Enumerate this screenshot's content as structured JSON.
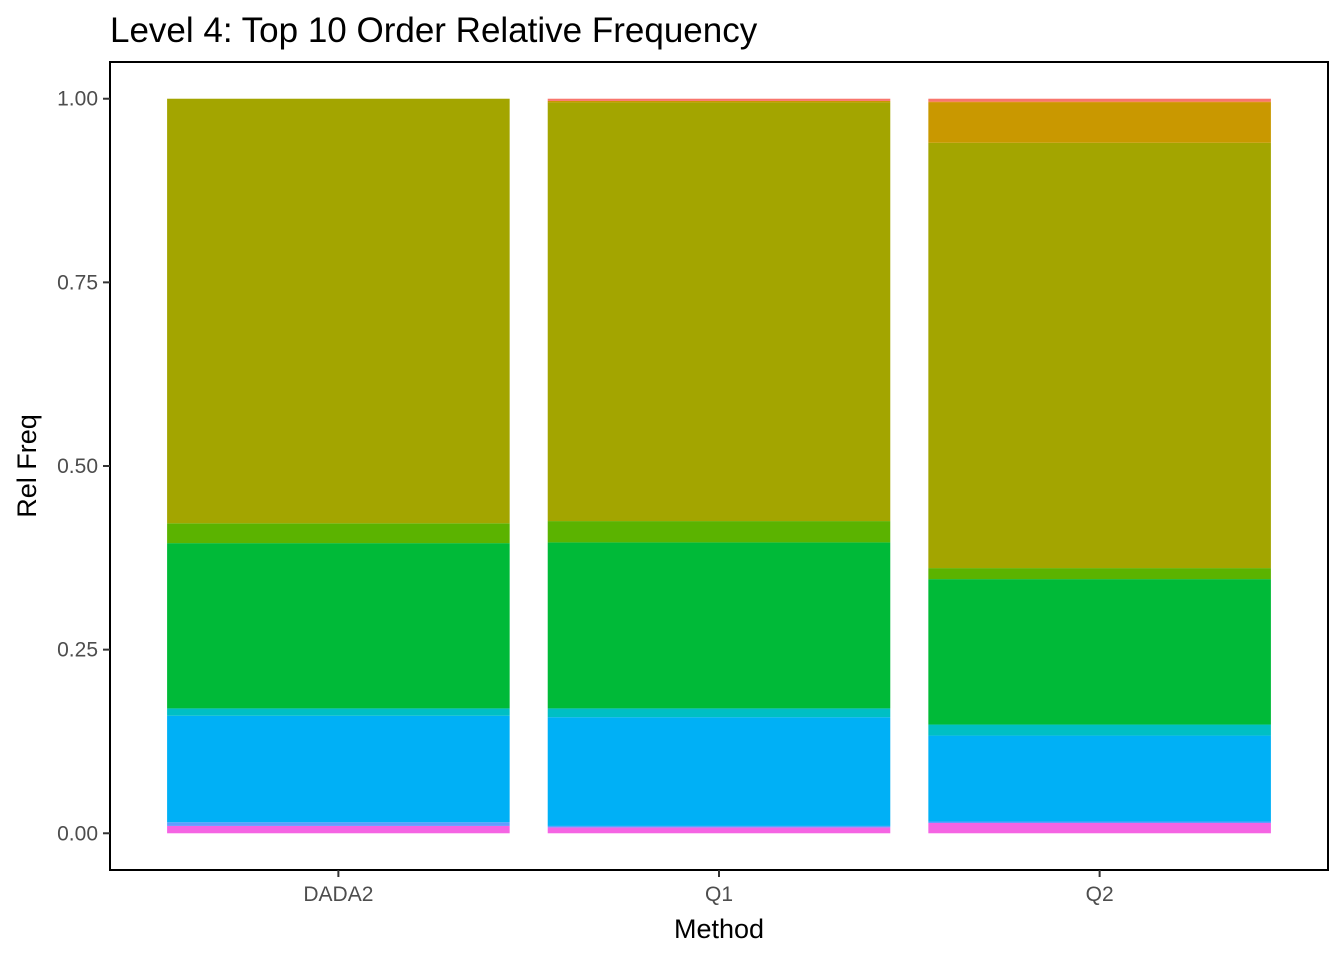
{
  "chart_data": {
    "type": "bar",
    "stacked": true,
    "title": "Level 4: Top 10 Order Relative Frequency",
    "xlabel": "Method",
    "ylabel": "Rel Freq",
    "ylim": [
      -0.05,
      1.05
    ],
    "yticks": [
      "0.00",
      "0.25",
      "0.50",
      "0.75",
      "1.00"
    ],
    "ytick_values": [
      0,
      0.25,
      0.5,
      0.75,
      1.0
    ],
    "grid": false,
    "legend": "none",
    "categories": [
      "DADA2",
      "Q1",
      "Q2"
    ],
    "series": [
      {
        "color": "#F564E3",
        "values": [
          0.01,
          0.008,
          0.014
        ]
      },
      {
        "color": "#619CFF",
        "values": [
          0.005,
          0.002,
          0.002
        ]
      },
      {
        "color": "#00B0F6",
        "values": [
          0.145,
          0.148,
          0.117
        ]
      },
      {
        "color": "#00BFC4",
        "values": [
          0.01,
          0.012,
          0.015
        ]
      },
      {
        "color": "#00BA38",
        "values": [
          0.225,
          0.226,
          0.198
        ]
      },
      {
        "color": "#5BB300",
        "values": [
          0.027,
          0.029,
          0.015
        ]
      },
      {
        "color": "#A3A500",
        "values": [
          0.578,
          0.57,
          0.579
        ]
      },
      {
        "color": "#C99800",
        "values": [
          0.0,
          0.002,
          0.055
        ]
      },
      {
        "color": "#E58700",
        "values": [
          0.0,
          0.0,
          0.001
        ]
      },
      {
        "color": "#F8766D",
        "values": [
          0.0,
          0.003,
          0.004
        ]
      }
    ]
  }
}
